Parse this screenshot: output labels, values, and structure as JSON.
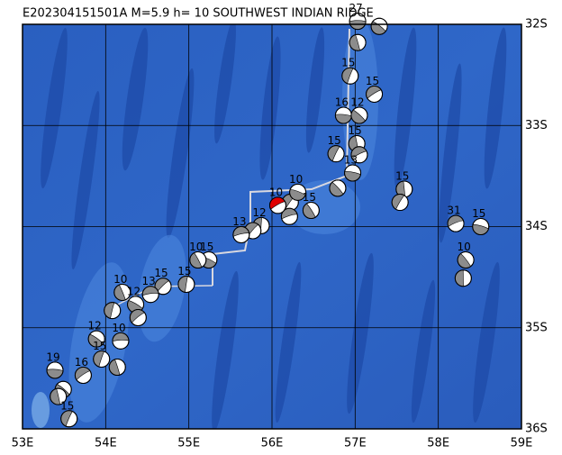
{
  "map": {
    "title": "E202304151501A M=5.9 h= 10 SOUTHWEST INDIAN RIDGE",
    "xlim": [
      53,
      59
    ],
    "ylim": [
      -36,
      -32
    ],
    "xticks": [
      {
        "value": 53,
        "label": "53E"
      },
      {
        "value": 54,
        "label": "54E"
      },
      {
        "value": 55,
        "label": "55E"
      },
      {
        "value": 56,
        "label": "56E"
      },
      {
        "value": 57,
        "label": "57E"
      },
      {
        "value": 58,
        "label": "58E"
      },
      {
        "value": 59,
        "label": "59E"
      }
    ],
    "yticks": [
      {
        "value": -32,
        "label": "32S"
      },
      {
        "value": -33,
        "label": "33S"
      },
      {
        "value": -34,
        "label": "34S"
      },
      {
        "value": -35,
        "label": "35S"
      },
      {
        "value": -36,
        "label": "36S"
      }
    ],
    "grid": true,
    "events": [
      {
        "lon": 57.03,
        "lat": -31.97,
        "depth": 27,
        "color": "#8c8c8c"
      },
      {
        "lon": 57.29,
        "lat": -32.02,
        "depth": null,
        "color": "#8c8c8c"
      },
      {
        "lon": 57.03,
        "lat": -32.18,
        "depth": null,
        "color": "#8c8c8c"
      },
      {
        "lon": 56.94,
        "lat": -32.51,
        "depth": 15,
        "color": "#8c8c8c"
      },
      {
        "lon": 57.23,
        "lat": -32.69,
        "depth": 15,
        "color": "#8c8c8c"
      },
      {
        "lon": 56.86,
        "lat": -32.9,
        "depth": 16,
        "color": "#8c8c8c"
      },
      {
        "lon": 57.05,
        "lat": -32.9,
        "depth": 12,
        "color": "#8c8c8c"
      },
      {
        "lon": 57.02,
        "lat": -33.18,
        "depth": 15,
        "color": "#8c8c8c"
      },
      {
        "lon": 56.77,
        "lat": -33.28,
        "depth": 15,
        "color": "#8c8c8c"
      },
      {
        "lon": 57.05,
        "lat": -33.29,
        "depth": null,
        "color": "#8c8c8c"
      },
      {
        "lon": 56.97,
        "lat": -33.47,
        "depth": 13,
        "color": "#8c8c8c"
      },
      {
        "lon": 56.79,
        "lat": -33.62,
        "depth": null,
        "color": "#8c8c8c"
      },
      {
        "lon": 57.59,
        "lat": -33.63,
        "depth": 15,
        "color": "#8c8c8c"
      },
      {
        "lon": 57.54,
        "lat": -33.76,
        "depth": null,
        "color": "#8c8c8c"
      },
      {
        "lon": 58.21,
        "lat": -33.97,
        "depth": 31,
        "color": "#8c8c8c"
      },
      {
        "lon": 58.51,
        "lat": -34.0,
        "depth": 15,
        "color": "#8c8c8c"
      },
      {
        "lon": 58.33,
        "lat": -34.33,
        "depth": 10,
        "color": "#8c8c8c"
      },
      {
        "lon": 58.3,
        "lat": -34.51,
        "depth": null,
        "color": "#8c8c8c"
      },
      {
        "lon": 56.22,
        "lat": -33.76,
        "depth": null,
        "color": "#8c8c8c"
      },
      {
        "lon": 56.21,
        "lat": -33.9,
        "depth": null,
        "color": "#8c8c8c"
      },
      {
        "lon": 56.31,
        "lat": -33.66,
        "depth": 10,
        "color": "#8c8c8c"
      },
      {
        "lon": 56.47,
        "lat": -33.84,
        "depth": 15,
        "color": "#8c8c8c"
      },
      {
        "lon": 55.87,
        "lat": -33.99,
        "depth": 12,
        "color": "#8c8c8c"
      },
      {
        "lon": 55.77,
        "lat": -34.04,
        "depth": null,
        "color": "#8c8c8c"
      },
      {
        "lon": 55.63,
        "lat": -34.08,
        "depth": 13,
        "color": "#8c8c8c"
      },
      {
        "lon": 55.24,
        "lat": -34.33,
        "depth": 15,
        "color": "#8c8c8c"
      },
      {
        "lon": 55.11,
        "lat": -34.33,
        "depth": 10,
        "color": "#8c8c8c"
      },
      {
        "lon": 54.97,
        "lat": -34.57,
        "depth": 15,
        "color": "#8c8c8c"
      },
      {
        "lon": 54.69,
        "lat": -34.59,
        "depth": 15,
        "color": "#8c8c8c"
      },
      {
        "lon": 54.54,
        "lat": -34.67,
        "depth": 13,
        "color": "#8c8c8c"
      },
      {
        "lon": 54.36,
        "lat": -34.77,
        "depth": 12,
        "color": "#8c8c8c"
      },
      {
        "lon": 54.2,
        "lat": -34.65,
        "depth": 10,
        "color": "#8c8c8c"
      },
      {
        "lon": 54.08,
        "lat": -34.83,
        "depth": null,
        "color": "#8c8c8c"
      },
      {
        "lon": 54.39,
        "lat": -34.9,
        "depth": null,
        "color": "#8c8c8c"
      },
      {
        "lon": 54.18,
        "lat": -35.13,
        "depth": 10,
        "color": "#8c8c8c"
      },
      {
        "lon": 53.89,
        "lat": -35.11,
        "depth": 12,
        "color": "#8c8c8c"
      },
      {
        "lon": 54.14,
        "lat": -35.39,
        "depth": null,
        "color": "#8c8c8c"
      },
      {
        "lon": 53.95,
        "lat": -35.31,
        "depth": 15,
        "color": "#8c8c8c"
      },
      {
        "lon": 53.73,
        "lat": -35.47,
        "depth": 16,
        "color": "#8c8c8c"
      },
      {
        "lon": 53.39,
        "lat": -35.42,
        "depth": 19,
        "color": "#8c8c8c"
      },
      {
        "lon": 53.49,
        "lat": -35.61,
        "depth": null,
        "color": "#8c8c8c"
      },
      {
        "lon": 53.43,
        "lat": -35.68,
        "depth": null,
        "color": "#8c8c8c"
      },
      {
        "lon": 53.56,
        "lat": -35.9,
        "depth": 15,
        "color": "#8c8c8c"
      },
      {
        "lon": 56.07,
        "lat": -33.79,
        "depth": 10,
        "color": "#e00000"
      }
    ]
  }
}
